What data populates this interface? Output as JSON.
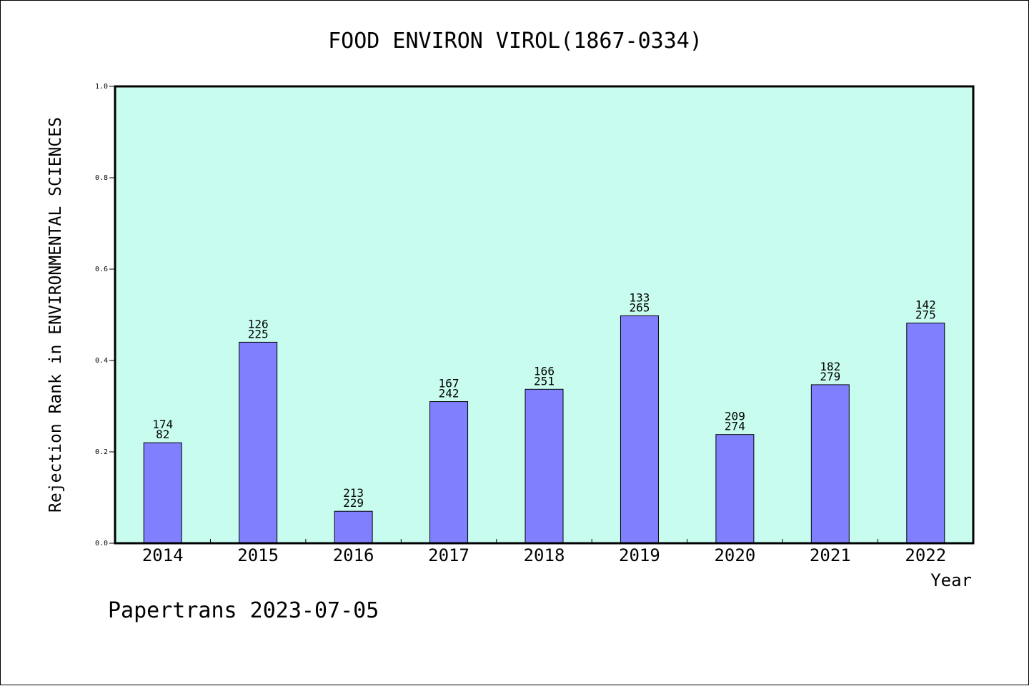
{
  "colors": {
    "plot_bg": "#c8fcef",
    "bar": "#8080ff",
    "frame": "#000000",
    "page_bg": "#ffffff"
  },
  "footer": "Papertrans 2023-07-05",
  "chart_data": {
    "type": "bar",
    "title": "FOOD ENVIRON VIROL(1867-0334)",
    "xlabel": "Year",
    "ylabel": "Rejection Rank in ENVIRONMENTAL SCIENCES",
    "ylim": [
      0,
      1.0
    ],
    "yticks": [
      "0.0",
      "0.2",
      "0.4",
      "0.6",
      "0.8",
      "1.0"
    ],
    "grid": false,
    "categories": [
      "2014",
      "2015",
      "2016",
      "2017",
      "2018",
      "2019",
      "2020",
      "2021",
      "2022"
    ],
    "values": [
      0.22,
      0.44,
      0.07,
      0.31,
      0.337,
      0.498,
      0.238,
      0.347,
      0.482
    ],
    "labels_top": [
      "174",
      "126",
      "213",
      "167",
      "166",
      "133",
      "209",
      "182",
      "142"
    ],
    "labels_bottom": [
      "82",
      "225",
      "229",
      "242",
      "251",
      "265",
      "274",
      "279",
      "275"
    ]
  }
}
